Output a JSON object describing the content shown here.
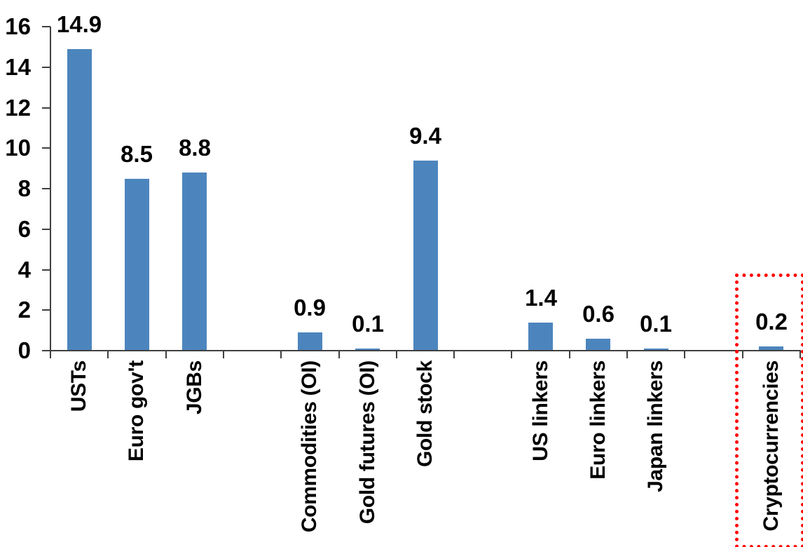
{
  "chart_data": {
    "type": "bar",
    "title": "",
    "xlabel": "",
    "ylabel": "",
    "categories": [
      "USTs",
      "Euro gov't",
      "JGBs",
      "Commodities (OI)",
      "Gold futures (OI)",
      "Gold stock",
      "US linkers",
      "Euro linkers",
      "Japan linkers",
      "Cryptocurrencies"
    ],
    "values": [
      14.9,
      8.5,
      8.8,
      0.9,
      0.1,
      9.4,
      1.4,
      0.6,
      0.1,
      0.2
    ],
    "value_labels": [
      "14.9",
      "8.5",
      "8.8",
      "0.9",
      "0.1",
      "9.4",
      "1.4",
      "0.6",
      "0.1",
      "0.2"
    ],
    "slot_of_category": [
      0,
      1,
      2,
      4,
      5,
      6,
      8,
      9,
      10,
      12
    ],
    "total_slots": 13,
    "ylim": [
      0,
      16
    ],
    "ytick_interval": 2,
    "ytick_labels": [
      "0",
      "2",
      "4",
      "6",
      "8",
      "10",
      "12",
      "14",
      "16"
    ],
    "grid": false,
    "legend": false,
    "bar_color": "#4C85BD",
    "axis_color": "#404040",
    "text_color": "#000000",
    "highlight": {
      "category": "Cryptocurrencies",
      "shape": "dotted-rectangle",
      "color": "#FF0000"
    }
  }
}
